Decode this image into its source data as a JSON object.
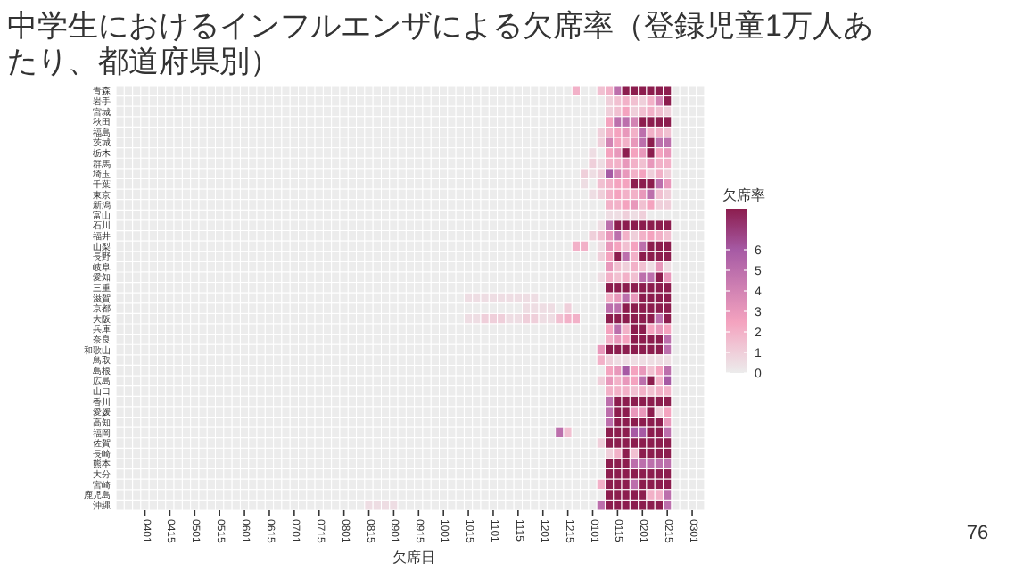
{
  "chart_data": {
    "type": "heatmap",
    "title": "中学生におけるインフルエンザによる欠席率（登録児童1万人あたり、都道府県別）",
    "xlabel": "欠席日",
    "clabel": "欠席率",
    "clim": [
      0,
      8
    ],
    "cticks": [
      0,
      1,
      2,
      3,
      4,
      5,
      6
    ],
    "grid": true,
    "categories": [
      null,
      null,
      null,
      "0401",
      null,
      null,
      "0415",
      null,
      null,
      "0501",
      null,
      null,
      "0515",
      null,
      null,
      "0601",
      null,
      null,
      "0615",
      null,
      null,
      "0701",
      null,
      null,
      "0715",
      null,
      null,
      "0801",
      null,
      null,
      "0815",
      null,
      null,
      "0901",
      null,
      null,
      "0915",
      null,
      null,
      "1001",
      null,
      null,
      "1015",
      null,
      null,
      "1101",
      null,
      null,
      "1115",
      null,
      null,
      "1201",
      null,
      null,
      "1215",
      null,
      null,
      "0101",
      null,
      null,
      "0115",
      null,
      null,
      "0201",
      null,
      null,
      "0215",
      null,
      null,
      "0301",
      null
    ],
    "y_categories": [
      "青森",
      "岩手",
      "宮城",
      "秋田",
      "福島",
      "茨城",
      "栃木",
      "群馬",
      "埼玉",
      "千葉",
      "東京",
      "新潟",
      "富山",
      "石川",
      "福井",
      "山梨",
      "長野",
      "岐阜",
      "愛知",
      "三重",
      "滋賀",
      "京都",
      "大阪",
      "兵庫",
      "奈良",
      "和歌山",
      "鳥取",
      "島根",
      "広島",
      "山口",
      "香川",
      "愛媛",
      "高知",
      "福岡",
      "佐賀",
      "長崎",
      "熊本",
      "大分",
      "宮崎",
      "鹿児島",
      "沖縄"
    ],
    "cells": [
      [
        null,
        null,
        null,
        0,
        0,
        0,
        0,
        0,
        0,
        0,
        0,
        0,
        0,
        0,
        0,
        0,
        0,
        0,
        0,
        0,
        0,
        0,
        0,
        0,
        0,
        0,
        0,
        0,
        0,
        0,
        0,
        0,
        0,
        0,
        0,
        0,
        0,
        0,
        0,
        0,
        0,
        0,
        0,
        0,
        0,
        0,
        0,
        0,
        0,
        0,
        0,
        0,
        0,
        0,
        0,
        2,
        0,
        0,
        1.5,
        2,
        5,
        8,
        8,
        8,
        8,
        8,
        8,
        null,
        null,
        null,
        null
      ],
      [
        null,
        null,
        null,
        0,
        0,
        0,
        0,
        0,
        0,
        0,
        0,
        0,
        0,
        0,
        0,
        0,
        0,
        0,
        0,
        0,
        0,
        0,
        0,
        0,
        0,
        0,
        0,
        0,
        0,
        0,
        0,
        0,
        0,
        0,
        0,
        0,
        0,
        0,
        0,
        0,
        0,
        0,
        0,
        0,
        0,
        0,
        0,
        0,
        0,
        0,
        0,
        0,
        0,
        0,
        0,
        0,
        0,
        0,
        0,
        1,
        1.5,
        2,
        1.5,
        1,
        2,
        4,
        8,
        null,
        null,
        null,
        null
      ],
      [
        null,
        null,
        null,
        0,
        0,
        0,
        0,
        0,
        0,
        0,
        0,
        0,
        0,
        0,
        0,
        0,
        0,
        0,
        0,
        0,
        0,
        0,
        0,
        0,
        0,
        0,
        0,
        0,
        0,
        0,
        0,
        0,
        0,
        0,
        0,
        0,
        0,
        0,
        0,
        0,
        0,
        0,
        0,
        0,
        0,
        0,
        0,
        0,
        0,
        0,
        0,
        0,
        0,
        0,
        0,
        0,
        0,
        0,
        0,
        1,
        1.5,
        2.5,
        1,
        1.5,
        2,
        1.5,
        1,
        null,
        null,
        null,
        null
      ],
      [
        null,
        null,
        null,
        0,
        0,
        0,
        0,
        0,
        0,
        0,
        0,
        0,
        0,
        0,
        0,
        0,
        0,
        0,
        0,
        0,
        0,
        0,
        0,
        0,
        0,
        0,
        0,
        0,
        0,
        0,
        0,
        0,
        0,
        0,
        0,
        0,
        0,
        0,
        0,
        0,
        0,
        0,
        0,
        0,
        0,
        0,
        0,
        0,
        0,
        0,
        0,
        0,
        0,
        0,
        0,
        0,
        0,
        0,
        0,
        2.5,
        5,
        5,
        4,
        8,
        8,
        8,
        8,
        null,
        null,
        null,
        null
      ],
      [
        null,
        null,
        null,
        0,
        0,
        0,
        0,
        0,
        0,
        0,
        0,
        0,
        0,
        0,
        0,
        0,
        0,
        0,
        0,
        0,
        0,
        0,
        0,
        0,
        0,
        0,
        0,
        0,
        0,
        0,
        0,
        0,
        0,
        0,
        0,
        0,
        0,
        0,
        0,
        0,
        0,
        0,
        0,
        0,
        0,
        0,
        0,
        0,
        0,
        0,
        0,
        0,
        0,
        0,
        0,
        0,
        0,
        0,
        1,
        2,
        2.5,
        3,
        2,
        5,
        2,
        2,
        1.5,
        null,
        null,
        null,
        null
      ],
      [
        null,
        null,
        null,
        0,
        0,
        0,
        0,
        0,
        0,
        0,
        0,
        0,
        0,
        0,
        0,
        0,
        0,
        0,
        0,
        0,
        0,
        0,
        0,
        0,
        0,
        0,
        0,
        0,
        0,
        0,
        0,
        0,
        0,
        0,
        0,
        0,
        0,
        0,
        0,
        0,
        0,
        0,
        0,
        0,
        0,
        0,
        0,
        0,
        0,
        0,
        0,
        0,
        0,
        0,
        0,
        0,
        0,
        0,
        1,
        4,
        2.5,
        2,
        3,
        5,
        8,
        5,
        5,
        null,
        null,
        null,
        null
      ],
      [
        null,
        null,
        null,
        0,
        0,
        0,
        0,
        0,
        0,
        0,
        0,
        0,
        0,
        0,
        0,
        0,
        0,
        0,
        0,
        0,
        0,
        0,
        0,
        0,
        0,
        0,
        0,
        0,
        0,
        0,
        0,
        0,
        0,
        0,
        0,
        0,
        0,
        0,
        0,
        0,
        0,
        0,
        0,
        0,
        0,
        0,
        0,
        0,
        0,
        0,
        0,
        0,
        0,
        0,
        0,
        0,
        0,
        0.5,
        0,
        2.5,
        3,
        8,
        2.5,
        3,
        8,
        2.5,
        3,
        null,
        null,
        null,
        null
      ],
      [
        null,
        null,
        null,
        0,
        0,
        0,
        0,
        0,
        0,
        0,
        0,
        0,
        0,
        0,
        0,
        0,
        0,
        0,
        0,
        0,
        0,
        0,
        0,
        0,
        0,
        0,
        0,
        0,
        0,
        0,
        0,
        0,
        0,
        0,
        0,
        0,
        0,
        0,
        0,
        0,
        0,
        0,
        0,
        0,
        0,
        0,
        0,
        0,
        0,
        0,
        0,
        0,
        0,
        0,
        0,
        0,
        0,
        1,
        0.5,
        2,
        2,
        3,
        2,
        1.5,
        3,
        2,
        2,
        null,
        null,
        null,
        null
      ],
      [
        null,
        null,
        null,
        0,
        0,
        0,
        0,
        0,
        0,
        0,
        0,
        0,
        0,
        0,
        0,
        0,
        0,
        0,
        0,
        0,
        0,
        0,
        0,
        0,
        0,
        0,
        0,
        0,
        0,
        0,
        0,
        0,
        0,
        0,
        0,
        0,
        0,
        0,
        0,
        0,
        0,
        0,
        0,
        0,
        0,
        0,
        0,
        0,
        0,
        0,
        0,
        0,
        0,
        0,
        0,
        0,
        1,
        0.5,
        1,
        6,
        4,
        3,
        2,
        2.5,
        1,
        2,
        1,
        null,
        null,
        null,
        null
      ],
      [
        null,
        null,
        null,
        0,
        0,
        0,
        0,
        0,
        0,
        0,
        0,
        0,
        0,
        0,
        0,
        0,
        0,
        0,
        0,
        0,
        0,
        0,
        0,
        0,
        0,
        0,
        0,
        0,
        0,
        0,
        0,
        0,
        0,
        0,
        0,
        0,
        0,
        0,
        0,
        0,
        0,
        0,
        0,
        0,
        0,
        0,
        0,
        0,
        0,
        0,
        0,
        0,
        0,
        0,
        0,
        0,
        0.5,
        0,
        1.5,
        2,
        2.5,
        2.5,
        8,
        8,
        8,
        5,
        3,
        null,
        null,
        null,
        null
      ],
      [
        null,
        null,
        null,
        0,
        0,
        0,
        0,
        0,
        0,
        0,
        0,
        0,
        0,
        0,
        0,
        0,
        0,
        0,
        0,
        0,
        0,
        0,
        0,
        0,
        0,
        0,
        0,
        0,
        0,
        0,
        0,
        0,
        0,
        0,
        0,
        0,
        0,
        0,
        0,
        0,
        0,
        0,
        0,
        0,
        0,
        0,
        0,
        0,
        0,
        0,
        0,
        0,
        0,
        0,
        0,
        0,
        0,
        0.5,
        1,
        2,
        2.5,
        2,
        2,
        3,
        5,
        1.5,
        1,
        null,
        null,
        null,
        null
      ],
      [
        null,
        null,
        null,
        0,
        0,
        0,
        0,
        0,
        0,
        0,
        0,
        0,
        0,
        0,
        0,
        0,
        0,
        0,
        0,
        0,
        0,
        0,
        0,
        0,
        0,
        0,
        0,
        0,
        0,
        0,
        0,
        0,
        0,
        0,
        0,
        0,
        0,
        0,
        0,
        0,
        0,
        0,
        0,
        0,
        0,
        0,
        0,
        0,
        0,
        0,
        0,
        0,
        0,
        0,
        0,
        0,
        0,
        0,
        0,
        2,
        2,
        2.5,
        3,
        1.5,
        2.5,
        1,
        1,
        null,
        null,
        null,
        null
      ],
      [
        null,
        null,
        null,
        0,
        0,
        0,
        0,
        0,
        0,
        0,
        0,
        0,
        0,
        0,
        0,
        0,
        0,
        0,
        0,
        0,
        0,
        0,
        0,
        0,
        0,
        0,
        0,
        0,
        0,
        0,
        0,
        0,
        0,
        0,
        0,
        0,
        0,
        0,
        0,
        0,
        0,
        0,
        0,
        0,
        0,
        0,
        0,
        0,
        0,
        0,
        0,
        0,
        0,
        0,
        0,
        0,
        0,
        0,
        0,
        0.5,
        0.5,
        1,
        0.5,
        1,
        0,
        0,
        0,
        null,
        null,
        null,
        null
      ],
      [
        null,
        null,
        null,
        0,
        0,
        0,
        0,
        0,
        0,
        0,
        0,
        0,
        0,
        0,
        0,
        0,
        0,
        0,
        0,
        0,
        0,
        0,
        0,
        0,
        0,
        0,
        0,
        0,
        0,
        0,
        0,
        0,
        0,
        0,
        0,
        0,
        0,
        0,
        0,
        0,
        0,
        0,
        0,
        0,
        0,
        0,
        0,
        0,
        0,
        0,
        0,
        0,
        0,
        0,
        0,
        0,
        0,
        0,
        0.5,
        5,
        8,
        8,
        8,
        8,
        8,
        8,
        8,
        null,
        null,
        null,
        null
      ],
      [
        null,
        null,
        null,
        0,
        0,
        0,
        0,
        0,
        0,
        0,
        0,
        0,
        0,
        0,
        0,
        0,
        0,
        0,
        0,
        0,
        0,
        0,
        0,
        0,
        0,
        0,
        0,
        0,
        0,
        0,
        0,
        0,
        0,
        0,
        0,
        0,
        0,
        0,
        0,
        0,
        0,
        0,
        0,
        0,
        0,
        0,
        0,
        0,
        0,
        0,
        0,
        0,
        0,
        0,
        0,
        0,
        0,
        1,
        1.5,
        3,
        5,
        2,
        1,
        2,
        2.5,
        2,
        1.5,
        null,
        null,
        null,
        null
      ],
      [
        null,
        null,
        null,
        0,
        0,
        0,
        0,
        0,
        0,
        0,
        0,
        0,
        0,
        0,
        0,
        0,
        0,
        0,
        0,
        0,
        0,
        0,
        0,
        0,
        0,
        0,
        0,
        0,
        0,
        0,
        0,
        0,
        0,
        0,
        0,
        0,
        0,
        0,
        0,
        0,
        0,
        0,
        0,
        0,
        0,
        0,
        0,
        0,
        0,
        0,
        0,
        0,
        0,
        0,
        0,
        2,
        2,
        0,
        0.5,
        3,
        2.5,
        1.5,
        2.5,
        5,
        8,
        8,
        8,
        null,
        null,
        null,
        null
      ],
      [
        null,
        null,
        null,
        0,
        0,
        0,
        0,
        0,
        0,
        0,
        0,
        0,
        0,
        0,
        0,
        0,
        0,
        0,
        0,
        0,
        0,
        0,
        0,
        0,
        0,
        0,
        0,
        0,
        0,
        0,
        0,
        0,
        0,
        0,
        0,
        0,
        0,
        0,
        0,
        0,
        0,
        0,
        0,
        0,
        0,
        0,
        0,
        0,
        0,
        0,
        0,
        0,
        0,
        0,
        0,
        0,
        0,
        0,
        1,
        2.5,
        8,
        5,
        2,
        8,
        8,
        8,
        8,
        null,
        null,
        null,
        null
      ],
      [
        null,
        null,
        null,
        0,
        0,
        0,
        0,
        0,
        0,
        0,
        0,
        0,
        0,
        0,
        0,
        0,
        0,
        0,
        0,
        0,
        0,
        0,
        0,
        0,
        0,
        0,
        0,
        0,
        0,
        0,
        0,
        0,
        0,
        0,
        0,
        0,
        0,
        0,
        0,
        0,
        0,
        0,
        0,
        0,
        0,
        0,
        0,
        0,
        0,
        0,
        0,
        0,
        0,
        0,
        0,
        0,
        0,
        0,
        0,
        3,
        1.5,
        1,
        2,
        1.5,
        0.5,
        3,
        0.5,
        null,
        null,
        null,
        null
      ],
      [
        null,
        null,
        null,
        0,
        0,
        0,
        0,
        0,
        0,
        0,
        0,
        0,
        0,
        0,
        0,
        0,
        0,
        0,
        0,
        0,
        0,
        0,
        0,
        0,
        0,
        0,
        0,
        0,
        0,
        0,
        0,
        0,
        0,
        0,
        0,
        0,
        0,
        0,
        0,
        0,
        0,
        0,
        0,
        0,
        0,
        0,
        0,
        0,
        0,
        0,
        0,
        0,
        0,
        0,
        0,
        0,
        0,
        0,
        0.5,
        2,
        1.5,
        2,
        1.5,
        5,
        5,
        8,
        3,
        null,
        null,
        null,
        null
      ],
      [
        null,
        null,
        null,
        0,
        0,
        0,
        0,
        0,
        0,
        0,
        0,
        0,
        0,
        0,
        0,
        0,
        0,
        0,
        0,
        0,
        0,
        0,
        0,
        0,
        0,
        0,
        0,
        0,
        0,
        0,
        0,
        0,
        0,
        0,
        0,
        0,
        0,
        0,
        0,
        0,
        0,
        0,
        0,
        0,
        0,
        0,
        0,
        0,
        0,
        0,
        0,
        0,
        0,
        0,
        0,
        0,
        0,
        0,
        0,
        8,
        8,
        8,
        8,
        8,
        8,
        8,
        8,
        null,
        null,
        null,
        null
      ],
      [
        null,
        null,
        null,
        0,
        0,
        0,
        0,
        0,
        0,
        0,
        0,
        0,
        0,
        0,
        0,
        0,
        0,
        0,
        0,
        0,
        0,
        0,
        0,
        0,
        0,
        0,
        0,
        0,
        0,
        0,
        0,
        0,
        0,
        0,
        0,
        0,
        0,
        0,
        0,
        0,
        0,
        0,
        0.5,
        0.5,
        0.5,
        0.5,
        0.5,
        0.5,
        0.5,
        0.5,
        0.5,
        0,
        0,
        0,
        0,
        0,
        0,
        0,
        0,
        2,
        3,
        5,
        3,
        8,
        8,
        8,
        8,
        null,
        null,
        null,
        null
      ],
      [
        null,
        null,
        null,
        0,
        0,
        0,
        0,
        0,
        0,
        0,
        0,
        0,
        0,
        0,
        0,
        0,
        0,
        0,
        0,
        0,
        0,
        0,
        0,
        0,
        0,
        0,
        0,
        0,
        0,
        0,
        0,
        0,
        0,
        0,
        0,
        0,
        0,
        0,
        0,
        0,
        0,
        0,
        0,
        0,
        0,
        0,
        0,
        0,
        0,
        0.5,
        0.5,
        0.5,
        0.5,
        0,
        1,
        0,
        0,
        0,
        0,
        5,
        5,
        8,
        8,
        8,
        8,
        8,
        8,
        null,
        null,
        null,
        null
      ],
      [
        null,
        null,
        null,
        0,
        0,
        0,
        0,
        0,
        0,
        0,
        0,
        0,
        0,
        0,
        0,
        0,
        0,
        0,
        0,
        0,
        0,
        0,
        0,
        0,
        0,
        0,
        0,
        0,
        0,
        0,
        0,
        0,
        0,
        0,
        0,
        0,
        0,
        0,
        0,
        0,
        0,
        0,
        0.5,
        0.5,
        1,
        1,
        1,
        0.5,
        0.5,
        1,
        1,
        0.5,
        0.5,
        1.5,
        2,
        2,
        0,
        0,
        0,
        8,
        8,
        8,
        8,
        8,
        8,
        5,
        8,
        null,
        null,
        null,
        null
      ],
      [
        null,
        null,
        null,
        0,
        0,
        0,
        0,
        0,
        0,
        0,
        0,
        0,
        0,
        0,
        0,
        0,
        0,
        0,
        0,
        0,
        0,
        0,
        0,
        0,
        0,
        0,
        0,
        0,
        0,
        0,
        0,
        0,
        0,
        0,
        0,
        0,
        0,
        0,
        0,
        0,
        0,
        0,
        0,
        0,
        0,
        0,
        0,
        0,
        0,
        0,
        0,
        0,
        0,
        0,
        0,
        0,
        0,
        0,
        0,
        2.5,
        5,
        2,
        8,
        8,
        2.5,
        3,
        2.5,
        null,
        null,
        null,
        null
      ],
      [
        null,
        null,
        null,
        0,
        0,
        0,
        0,
        0,
        0,
        0,
        0,
        0,
        0,
        0,
        0,
        0,
        0,
        0,
        0,
        0,
        0,
        0,
        0,
        0,
        0,
        0,
        0,
        0,
        0,
        0,
        0,
        0,
        0,
        0,
        0,
        0,
        0,
        0,
        0,
        0,
        0,
        0,
        0,
        0,
        0,
        0,
        0,
        0,
        0,
        0,
        0,
        0,
        0,
        0,
        0,
        0,
        0,
        0,
        0,
        2,
        3,
        2.5,
        8,
        8,
        8,
        8,
        5,
        null,
        null,
        null,
        null
      ],
      [
        null,
        null,
        null,
        0,
        0,
        0,
        0,
        0,
        0,
        0,
        0,
        0,
        0,
        0,
        0,
        0,
        0,
        0,
        0,
        0,
        0,
        0,
        0,
        0,
        0,
        0,
        0,
        0,
        0,
        0,
        0,
        0,
        0,
        0,
        0,
        0,
        0,
        0,
        0,
        0,
        0,
        0,
        0,
        0,
        0,
        0,
        0,
        0,
        0,
        0,
        0,
        0,
        0,
        0,
        0,
        0,
        0,
        0,
        3,
        8,
        8,
        8,
        8,
        8,
        8,
        8,
        5,
        null,
        null,
        null,
        null
      ],
      [
        null,
        null,
        null,
        0,
        0,
        0,
        0,
        0,
        0,
        0,
        0,
        0,
        0,
        0,
        0,
        0,
        0,
        0,
        0,
        0,
        0,
        0,
        0,
        0,
        0,
        0,
        0,
        0,
        0,
        0,
        0,
        0,
        0,
        0,
        0,
        0,
        0,
        0,
        0,
        0,
        0,
        0,
        0,
        0,
        0,
        0,
        0,
        0,
        0,
        0,
        0,
        0,
        0,
        0,
        0,
        0,
        0,
        0,
        2,
        1,
        0.5,
        0.5,
        0.5,
        0.5,
        0.5,
        0.5,
        0.5,
        null,
        null,
        null,
        null
      ],
      [
        null,
        null,
        null,
        0,
        0,
        0,
        0,
        0,
        0,
        0,
        0,
        0,
        0,
        0,
        0,
        0,
        0,
        0,
        0,
        0,
        0,
        0,
        0,
        0,
        0,
        0,
        0,
        0,
        0,
        0,
        0,
        0,
        0,
        0,
        0,
        0,
        0,
        0,
        0,
        0,
        0,
        0,
        0,
        0,
        0,
        0,
        0,
        0,
        0,
        0,
        0,
        0,
        0,
        0,
        0,
        0,
        0,
        0,
        0,
        2.5,
        3,
        6,
        2.5,
        3,
        1.5,
        2.5,
        5,
        null,
        null,
        null,
        null
      ],
      [
        null,
        null,
        null,
        0,
        0,
        0,
        0,
        0,
        0,
        0,
        0,
        0,
        0,
        0,
        0,
        0,
        0,
        0,
        0,
        0,
        0,
        0,
        0,
        0,
        0,
        0,
        0,
        0,
        0,
        0,
        0,
        0,
        0,
        0,
        0,
        0,
        0,
        0,
        0,
        0,
        0,
        0,
        0,
        0,
        0,
        0,
        0,
        0,
        0,
        0,
        0,
        0,
        0,
        0,
        0,
        0,
        0,
        0,
        1,
        3,
        2,
        3,
        2.5,
        5,
        8,
        2,
        6,
        null,
        null,
        null,
        null
      ],
      [
        null,
        null,
        null,
        0,
        0,
        0,
        0,
        0,
        0,
        0,
        0,
        0,
        0,
        0,
        0,
        0,
        0,
        0,
        0,
        0,
        0,
        0,
        0,
        0,
        0,
        0,
        0,
        0,
        0,
        0,
        0,
        0,
        0,
        0,
        0,
        0,
        0,
        0,
        0,
        0,
        0,
        0,
        0,
        0,
        0,
        0,
        0,
        0,
        0,
        0,
        0,
        0,
        0,
        0,
        0,
        0,
        0,
        0,
        0,
        2,
        2,
        2,
        1.5,
        2,
        1.5,
        2,
        2,
        null,
        null,
        null,
        null
      ],
      [
        null,
        null,
        null,
        0,
        0,
        0,
        0,
        0,
        0,
        0,
        0,
        0,
        0,
        0,
        0,
        0,
        0,
        0,
        0,
        0,
        0,
        0,
        0,
        0,
        0,
        0,
        0,
        0,
        0,
        0,
        0,
        0,
        0,
        0,
        0,
        0,
        0,
        0,
        0,
        0,
        0,
        0,
        0,
        0,
        0,
        0,
        0,
        0,
        0,
        0,
        0,
        0,
        0,
        0,
        0,
        0,
        0,
        0,
        0,
        5,
        8,
        8,
        8,
        8,
        8,
        8,
        8,
        null,
        null,
        null,
        null
      ],
      [
        null,
        null,
        null,
        0,
        0,
        0,
        0,
        0,
        0,
        0,
        0,
        0,
        0,
        0,
        0,
        0,
        0,
        0,
        0,
        0,
        0,
        0,
        0,
        0,
        0,
        0,
        0,
        0,
        0,
        0,
        0,
        0,
        0,
        0,
        0,
        0,
        0,
        0,
        0,
        0,
        0,
        0,
        0,
        0,
        0,
        0,
        0,
        0,
        0,
        0,
        0,
        0,
        0,
        0,
        0,
        0,
        0,
        0,
        0,
        5,
        8,
        8,
        3,
        3,
        8,
        1,
        2.5,
        null,
        null,
        null,
        null
      ],
      [
        null,
        null,
        null,
        0,
        0,
        0,
        0,
        0,
        0,
        0,
        0,
        0,
        0,
        0,
        0,
        0,
        0,
        0,
        0,
        0,
        0,
        0,
        0,
        0,
        0,
        0,
        0,
        0,
        0,
        0,
        0,
        0,
        0,
        0,
        0,
        0,
        0,
        0,
        0,
        0,
        0,
        0,
        0,
        0,
        0,
        0,
        0,
        0,
        0,
        0,
        0,
        0,
        0,
        0,
        0,
        0,
        0,
        0,
        0,
        5,
        8,
        8,
        8,
        8,
        8,
        8,
        3,
        null,
        null,
        null,
        null
      ],
      [
        null,
        null,
        null,
        0,
        0,
        0,
        0,
        0,
        0,
        0,
        0,
        0,
        0,
        0,
        0,
        0,
        0,
        0,
        0,
        0,
        0,
        0,
        0,
        0,
        0,
        0,
        0,
        0,
        0,
        0,
        0,
        0,
        0,
        0,
        0,
        0,
        0,
        0,
        0,
        0,
        0,
        0,
        0,
        0,
        0,
        0,
        0,
        0,
        0,
        0,
        0,
        0,
        0,
        5,
        1.5,
        0,
        0,
        0,
        0,
        8,
        8,
        8,
        6,
        6,
        8,
        8,
        5,
        null,
        null,
        null,
        null
      ],
      [
        null,
        null,
        null,
        0,
        0,
        0,
        0,
        0,
        0,
        0,
        0,
        0,
        0,
        0,
        0,
        0,
        0,
        0,
        0,
        0,
        0,
        0,
        0,
        0,
        0,
        0,
        0,
        0,
        0,
        0,
        0,
        0,
        0,
        0,
        0,
        0,
        0,
        0,
        0,
        0,
        0,
        0,
        0,
        0,
        0,
        0,
        0,
        0,
        0,
        0,
        0,
        0,
        0,
        0,
        0,
        0,
        0,
        0,
        1,
        8,
        8,
        8,
        8,
        8,
        8,
        8,
        8,
        null,
        null,
        null,
        null
      ],
      [
        null,
        null,
        null,
        0,
        0,
        0,
        0,
        0,
        0,
        0,
        0,
        0,
        0,
        0,
        0,
        0,
        0,
        0,
        0,
        0,
        0,
        0,
        0,
        0,
        0,
        0,
        0,
        0,
        0,
        0,
        0,
        0,
        0,
        0,
        0,
        0,
        0,
        0,
        0,
        0,
        0,
        0,
        0,
        0,
        0,
        0,
        0,
        0,
        0,
        0,
        0,
        0,
        0,
        0,
        0,
        0,
        0,
        0,
        0,
        1,
        2,
        8,
        1.5,
        8,
        8,
        8,
        8,
        null,
        null,
        null,
        null
      ],
      [
        null,
        null,
        null,
        0,
        0,
        0,
        0,
        0,
        0,
        0,
        0,
        0,
        0,
        0,
        0,
        0,
        0,
        0,
        0,
        0,
        0,
        0,
        0,
        0,
        0,
        0,
        0,
        0,
        0,
        0,
        0,
        0,
        0,
        0,
        0,
        0,
        0,
        0,
        0,
        0,
        0,
        0,
        0,
        0,
        0,
        0,
        0,
        0,
        0,
        0,
        0,
        0,
        0,
        0,
        0,
        0,
        0,
        0,
        0,
        8,
        8,
        8,
        5,
        5,
        5,
        5,
        5,
        null,
        null,
        null,
        null
      ],
      [
        null,
        null,
        null,
        0,
        0,
        0,
        0,
        0,
        0,
        0,
        0,
        0,
        0,
        0,
        0,
        0,
        0,
        0,
        0,
        0,
        0,
        0,
        0,
        0,
        0,
        0,
        0,
        0,
        0,
        0,
        0,
        0,
        0,
        0,
        0,
        0,
        0,
        0,
        0,
        0,
        0,
        0,
        0,
        0,
        0,
        0,
        0,
        0,
        0,
        0,
        0,
        0,
        0,
        0,
        0,
        0,
        0,
        0,
        0,
        8,
        8,
        8,
        8,
        8,
        8,
        8,
        8,
        null,
        null,
        null,
        null
      ],
      [
        null,
        null,
        null,
        0,
        0,
        0,
        0,
        0,
        0,
        0,
        0,
        0,
        0,
        0,
        0,
        0,
        0,
        0,
        0,
        0,
        0,
        0,
        0,
        0,
        0,
        0,
        0,
        0,
        0,
        0,
        0,
        0,
        0,
        0,
        0,
        0,
        0,
        0,
        0,
        0,
        0,
        0,
        0,
        0,
        0,
        0,
        0,
        0,
        0,
        0,
        0,
        0,
        0,
        0,
        0,
        0,
        0,
        0,
        2,
        8,
        8,
        8,
        5,
        8,
        8,
        8,
        8,
        null,
        null,
        null,
        null
      ],
      [
        null,
        null,
        null,
        0,
        0,
        0,
        0,
        0,
        0,
        0,
        0,
        0,
        0,
        0,
        0,
        0,
        0,
        0,
        0,
        0,
        0,
        0,
        0,
        0,
        0,
        0,
        0,
        0,
        0,
        0,
        0,
        0,
        0,
        0,
        0,
        0,
        0,
        0,
        0,
        0,
        0,
        0,
        0,
        0,
        0,
        0,
        0,
        0,
        0,
        0,
        0,
        0,
        0,
        0,
        0,
        0,
        0,
        0,
        0,
        8,
        8,
        8,
        8,
        8,
        2,
        2,
        5,
        null,
        null,
        null,
        null
      ],
      [
        null,
        null,
        null,
        0,
        0,
        0,
        0,
        0,
        0,
        0,
        0,
        0,
        0,
        0,
        0,
        0,
        0,
        0,
        0,
        0,
        0,
        0,
        0,
        0,
        0,
        0,
        0,
        0,
        0,
        0,
        0.5,
        0.5,
        0.5,
        0.5,
        0,
        0,
        0,
        0,
        0,
        0,
        0,
        0,
        0,
        0,
        0,
        0,
        0,
        0,
        0,
        0,
        0,
        0,
        0,
        0,
        0,
        0,
        0,
        0,
        5,
        8,
        8,
        8,
        8,
        8,
        8,
        8,
        5,
        null,
        null,
        null,
        null
      ]
    ],
    "annotations": [
      "76"
    ]
  }
}
